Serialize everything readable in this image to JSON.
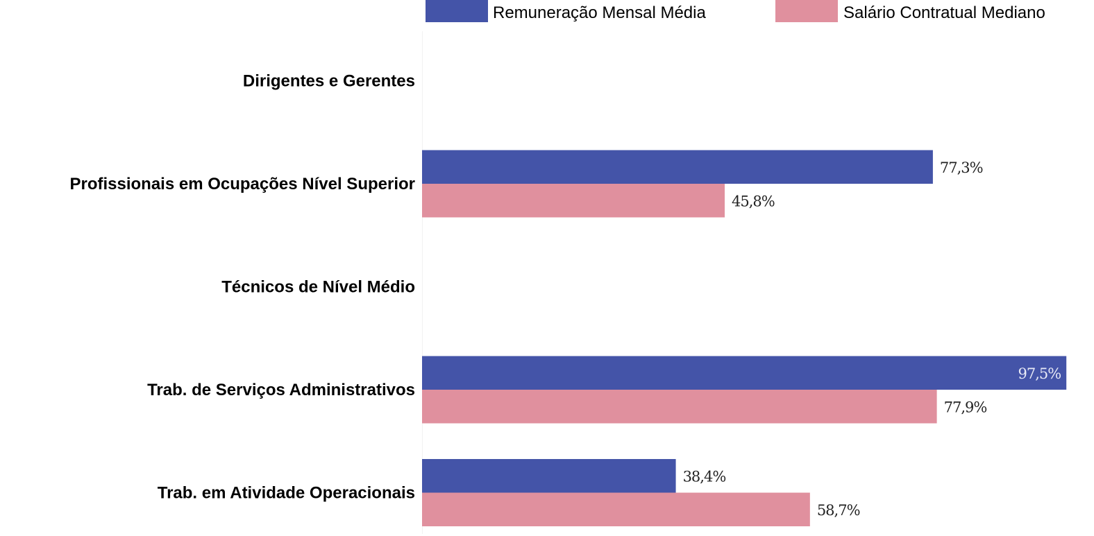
{
  "chart_data": {
    "type": "bar",
    "orientation": "horizontal",
    "categories": [
      "Dirigentes e Gerentes",
      "Profissionais em Ocupações Nível Superior",
      "Técnicos de Nível Médio",
      "Trab. de Serviços Administrativos",
      "Trab. em Atividade Operacionais"
    ],
    "series": [
      {
        "name": "Remuneração Mensal Média",
        "color": "#4454a8",
        "values": [
          null,
          77.3,
          null,
          97.5,
          38.4
        ],
        "labels": [
          "",
          "77,3%",
          "",
          "97,5%",
          "38,4%"
        ]
      },
      {
        "name": "Salário Contratual Mediano",
        "color": "#e0909e",
        "values": [
          null,
          45.8,
          null,
          77.9,
          58.7
        ],
        "labels": [
          "",
          "45,8%",
          "",
          "77,9%",
          "58,7%"
        ]
      }
    ],
    "unit": "%",
    "xlim": [
      0,
      100
    ],
    "grid": false,
    "legend": "top-right"
  }
}
